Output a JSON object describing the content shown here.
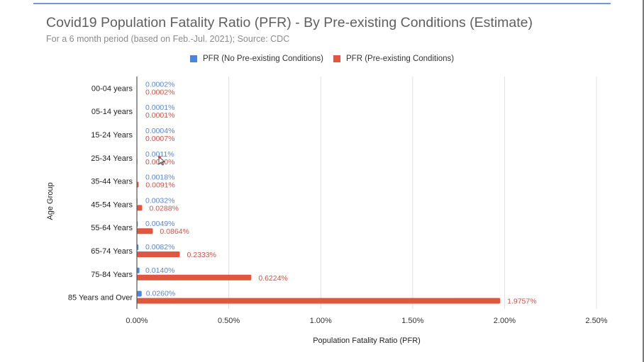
{
  "colors": {
    "series_no_pre": "#4a86e0",
    "series_pre": "#e0563f",
    "label_no_pre": "#5b86c8",
    "label_pre": "#c2574a",
    "title": "#5f5f5f",
    "subtitle": "#8a8a8a",
    "grid": "#e0e0e0",
    "axis": "#333333"
  },
  "chart_data": {
    "type": "bar",
    "orientation": "horizontal",
    "title": "Covid19 Population Fatality Ratio (PFR) - By Pre-existing Conditions (Estimate)",
    "subtitle": "For a 6 month period (based on Feb.-Jul. 2021); Source: CDC",
    "xlabel": "Population Fatality Ratio (PFR)",
    "ylabel": "Age Group",
    "xlim": [
      0,
      2.5
    ],
    "x_unit": "%",
    "x_ticks": [
      0,
      0.5,
      1.0,
      1.5,
      2.0,
      2.5
    ],
    "x_tick_labels": [
      "0.00%",
      "0.50%",
      "1.00%",
      "1.50%",
      "2.00%",
      "2.50%"
    ],
    "grid": true,
    "legend_position": "top",
    "categories": [
      "00-04 years",
      "05-14 years",
      "15-24 Years",
      "25-34 Years",
      "35-44 Years",
      "45-54 Years",
      "55-64 Years",
      "65-74 Years",
      "75-84 Years",
      "85 Years and Over"
    ],
    "series": [
      {
        "name": "PFR (No Pre-existing Conditions)",
        "values": [
          0.0002,
          0.0001,
          0.0004,
          0.0011,
          0.0018,
          0.0032,
          0.0049,
          0.0082,
          0.014,
          0.026
        ],
        "labels": [
          "0.0002%",
          "0.0001%",
          "0.0004%",
          "0.0011%",
          "0.0018%",
          "0.0032%",
          "0.0049%",
          "0.0082%",
          "0.0140%",
          "0.0260%"
        ]
      },
      {
        "name": "PFR (Pre-existing Conditions)",
        "values": [
          0.0002,
          0.0001,
          0.0007,
          0.003,
          0.0091,
          0.0288,
          0.0864,
          0.2333,
          0.6224,
          1.9757
        ],
        "labels": [
          "0.0002%",
          "0.0001%",
          "0.0007%",
          "0.0030%",
          "0.0091%",
          "0.0288%",
          "0.0864%",
          "0.2333%",
          "0.6224%",
          "1.9757%"
        ]
      }
    ]
  }
}
